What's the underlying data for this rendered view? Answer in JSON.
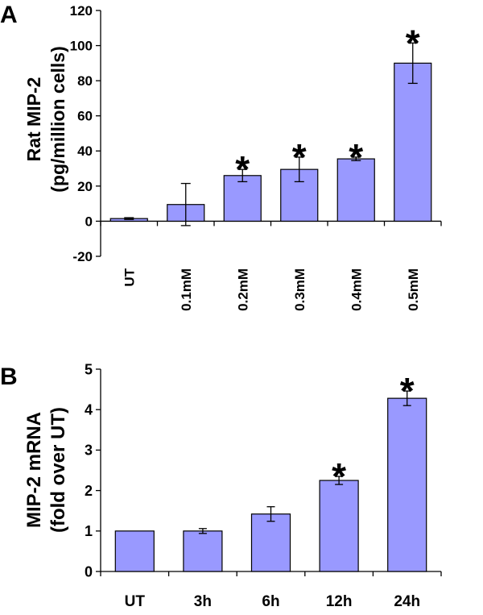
{
  "chart_data": [
    {
      "panel_label": "A",
      "type": "bar",
      "ylabel_lines": [
        "Rat MIP-2",
        "(pg/million cells)"
      ],
      "xlabel": "",
      "ylim": [
        -20,
        120
      ],
      "yticks": [
        -20,
        0,
        20,
        40,
        60,
        80,
        100,
        120
      ],
      "categories": [
        "UT",
        "0.1mM",
        "0.2mM",
        "0.3mM",
        "0.4mM",
        "0.5mM"
      ],
      "series": [
        {
          "values": [
            1.5,
            9.5,
            26,
            29.5,
            35.5,
            90
          ],
          "error": [
            0.5,
            12,
            3.5,
            7,
            1,
            11.5
          ],
          "significant": [
            false,
            false,
            true,
            true,
            true,
            true
          ]
        }
      ],
      "annotation_symbol": "*",
      "bar_color": "#9999ff",
      "grid": false
    },
    {
      "panel_label": "B",
      "type": "bar",
      "ylabel_lines": [
        "MIP-2 mRNA",
        "(fold over UT)"
      ],
      "xlabel": "",
      "ylim": [
        0,
        5
      ],
      "yticks": [
        0,
        1,
        2,
        3,
        4,
        5
      ],
      "categories": [
        "UT",
        "3h",
        "6h",
        "12h",
        "24h"
      ],
      "series": [
        {
          "values": [
            1.0,
            1.0,
            1.42,
            2.25,
            4.28
          ],
          "error": [
            0,
            0.06,
            0.18,
            0.1,
            0.18
          ],
          "significant": [
            false,
            false,
            false,
            true,
            true
          ]
        }
      ],
      "annotation_symbol": "*",
      "bar_color": "#9999ff",
      "grid": false
    }
  ]
}
